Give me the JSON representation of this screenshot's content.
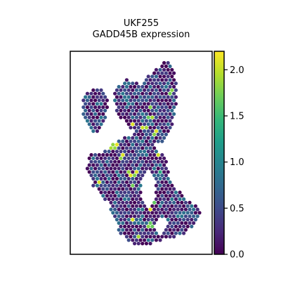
{
  "chart_data": {
    "type": "heatmap",
    "title": "UKF255",
    "subtitle": "GADD45B expression",
    "colormap": "viridis",
    "colorbar": {
      "range": [
        0.0,
        2.2
      ],
      "ticks": [
        0.0,
        0.5,
        1.0,
        1.5,
        2.0
      ],
      "tick_labels": [
        "0.0",
        "0.5",
        "1.0",
        "1.5",
        "2.0"
      ]
    },
    "spatial_extent": {
      "x": [
        0,
        100
      ],
      "y": [
        0,
        100
      ]
    },
    "regions": [
      {
        "name": "main tissue",
        "polygon": [
          [
            14,
            50
          ],
          [
            22,
            50
          ],
          [
            30,
            46
          ],
          [
            40,
            42
          ],
          [
            46,
            40
          ],
          [
            52,
            44
          ],
          [
            60,
            46
          ],
          [
            66,
            52
          ],
          [
            70,
            58
          ],
          [
            70,
            64
          ],
          [
            74,
            66
          ],
          [
            78,
            70
          ],
          [
            84,
            74
          ],
          [
            90,
            76
          ],
          [
            92,
            80
          ],
          [
            88,
            86
          ],
          [
            80,
            90
          ],
          [
            70,
            92
          ],
          [
            60,
            94
          ],
          [
            50,
            96
          ],
          [
            40,
            94
          ],
          [
            34,
            88
          ],
          [
            30,
            80
          ],
          [
            26,
            74
          ],
          [
            22,
            72
          ],
          [
            16,
            66
          ],
          [
            12,
            58
          ]
        ]
      },
      {
        "name": "upper right lobe",
        "polygon": [
          [
            32,
            18
          ],
          [
            40,
            14
          ],
          [
            50,
            16
          ],
          [
            54,
            12
          ],
          [
            62,
            8
          ],
          [
            68,
            4
          ],
          [
            72,
            6
          ],
          [
            74,
            12
          ],
          [
            76,
            20
          ],
          [
            74,
            30
          ],
          [
            72,
            38
          ],
          [
            68,
            44
          ],
          [
            62,
            46
          ],
          [
            54,
            46
          ],
          [
            46,
            40
          ],
          [
            40,
            36
          ],
          [
            34,
            32
          ],
          [
            30,
            24
          ]
        ]
      },
      {
        "name": "upper left lobe",
        "polygon": [
          [
            10,
            22
          ],
          [
            16,
            18
          ],
          [
            22,
            18
          ],
          [
            26,
            24
          ],
          [
            26,
            30
          ],
          [
            24,
            36
          ],
          [
            20,
            40
          ],
          [
            14,
            40
          ],
          [
            10,
            34
          ],
          [
            8,
            28
          ]
        ]
      }
    ],
    "holes": [
      {
        "center": [
          55,
          68
        ],
        "rx": 5,
        "ry": 9
      },
      {
        "center": [
          64,
          86
        ],
        "rx": 4,
        "ry": 4
      }
    ],
    "hotspots": [
      [
        54,
        28
      ],
      [
        56,
        32
      ],
      [
        52,
        36
      ],
      [
        60,
        40
      ],
      [
        44,
        60
      ],
      [
        66,
        60
      ],
      [
        58,
        74
      ],
      [
        42,
        84
      ],
      [
        56,
        86
      ],
      [
        48,
        92
      ],
      [
        30,
        46
      ],
      [
        64,
        50
      ],
      [
        38,
        52
      ],
      [
        70,
        20
      ]
    ],
    "value_distribution": {
      "typical_max": 0.9,
      "hotspot_value": 2.15
    }
  }
}
